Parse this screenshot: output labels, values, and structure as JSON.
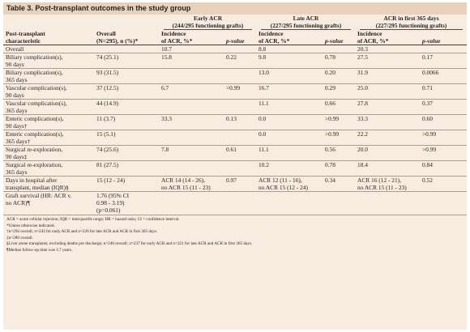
{
  "title": "Table 3. Post-transplant outcomes in the study group",
  "groups": [
    {
      "name": "Early ACR",
      "sub": "(244/295 functioning grafts)"
    },
    {
      "name": "Late ACR",
      "sub": "(227/295 functioning grafts)"
    },
    {
      "name": "ACR in first 365 days",
      "sub": "(227/295 functioning grafts)"
    }
  ],
  "headers": {
    "characteristic": [
      "Post-transplant",
      "characteristic"
    ],
    "overall": [
      "Overall",
      "(N=295), n (%)*"
    ],
    "incidence": [
      "Incidence",
      "of ACR, %*"
    ],
    "pvalue": "p-value"
  },
  "rows": [
    {
      "label": [
        "Overall"
      ],
      "overall": [
        ""
      ],
      "e_inc": [
        "10.7"
      ],
      "e_p": "",
      "l_inc": [
        "8.8"
      ],
      "l_p": "",
      "a_inc": [
        "20.3"
      ],
      "a_p": ""
    },
    {
      "label": [
        "Biliary complication(s),",
        "90 days"
      ],
      "overall": [
        "74 (25.1)"
      ],
      "e_inc": [
        "15.8"
      ],
      "e_p": "0.22",
      "l_inc": [
        "9.8"
      ],
      "l_p": "0.78",
      "a_inc": [
        "27.5"
      ],
      "a_p": "0.17"
    },
    {
      "label": [
        "Biliary complication(s),",
        "365 days"
      ],
      "overall": [
        "93 (31.5)"
      ],
      "e_inc": [
        ""
      ],
      "e_p": "",
      "l_inc": [
        "13.0"
      ],
      "l_p": "0.20",
      "a_inc": [
        "31.9"
      ],
      "a_p": "0.0066"
    },
    {
      "label": [
        "Vascular complication(s),",
        "90 days"
      ],
      "overall": [
        "37 (12.5)"
      ],
      "e_inc": [
        "6.7"
      ],
      "e_p": ">0.99",
      "l_inc": [
        "16.7"
      ],
      "l_p": "0.29",
      "a_inc": [
        "25.0"
      ],
      "a_p": "0.71"
    },
    {
      "label": [
        "Vascular complication(s),",
        "365 days"
      ],
      "overall": [
        "44 (14.9)"
      ],
      "e_inc": [
        ""
      ],
      "e_p": "",
      "l_inc": [
        "11.1"
      ],
      "l_p": "0.66",
      "a_inc": [
        "27.8"
      ],
      "a_p": "0.37"
    },
    {
      "label": [
        "Enteric complication(s),",
        "90 days†"
      ],
      "overall": [
        "11 (3.7)"
      ],
      "e_inc": [
        "33.3"
      ],
      "e_p": "0.13",
      "l_inc": [
        "0.0"
      ],
      "l_p": ">0.99",
      "a_inc": [
        "33.3"
      ],
      "a_p": "0.60"
    },
    {
      "label": [
        "Enteric complication(s),",
        "365 days†"
      ],
      "overall": [
        "15 (5.1)"
      ],
      "e_inc": [
        ""
      ],
      "e_p": "",
      "l_inc": [
        "0.0"
      ],
      "l_p": ">0.99",
      "a_inc": [
        "22.2"
      ],
      "a_p": ">0.99"
    },
    {
      "label": [
        "Surgical re-exploration,",
        "90 days‡"
      ],
      "overall": [
        "74 (25.6)"
      ],
      "e_inc": [
        "7.8"
      ],
      "e_p": "0.61",
      "l_inc": [
        "11.1"
      ],
      "l_p": "0.56",
      "a_inc": [
        "20.0"
      ],
      "a_p": ">0.99"
    },
    {
      "label": [
        "Surgical re-exploration,",
        "365 days"
      ],
      "overall": [
        "81 (27.5)"
      ],
      "e_inc": [
        ""
      ],
      "e_p": "",
      "l_inc": [
        "10.2"
      ],
      "l_p": "0.78",
      "a_inc": [
        "18.4"
      ],
      "a_p": "0.84"
    },
    {
      "label": [
        "Days in hospital after",
        "transplant, median (IQR)§"
      ],
      "overall": [
        "15 (12 - 24)"
      ],
      "e_inc": [
        "ACR 14 (14 - 26),",
        "no ACR 15 (11 - 23)"
      ],
      "e_p": "0.97",
      "l_inc": [
        "ACR 12 (11 - 16),",
        "no ACR 15 (12 - 24)"
      ],
      "l_p": "0.34",
      "a_inc": [
        "ACR 16 (12 - 21),",
        "no ACR 15 (11 - 23)"
      ],
      "a_p": "0.52"
    },
    {
      "label": [
        "Graft survival (HR: ACR v.",
        "no ACR)¶"
      ],
      "overall": [
        "1.76 (95% CI",
        "0.98 - 3.19)",
        "(p=0.061)"
      ],
      "e_inc": [
        ""
      ],
      "e_p": "",
      "l_inc": [
        ""
      ],
      "l_p": "",
      "a_inc": [
        ""
      ],
      "a_p": ""
    }
  ],
  "footnotes": [
    "ACR = acute cellular rejection; IQR = interquartile range; HR = hazard ratio; CI = confidence interval.",
    "*Unless otherwise indicated.",
    "†n=294 overall; n=243 for early ACR and n=226 for late ACR and ACR in first 365 days.",
    "‡n=289 overall.",
    "§Liver alone transplants; excluding deaths pre discharge; n=246 overall; n=237 for early ACR and n=221 for late ACR and ACR in first 365 days.",
    "¶Median follow-up time was 3.7 years."
  ]
}
